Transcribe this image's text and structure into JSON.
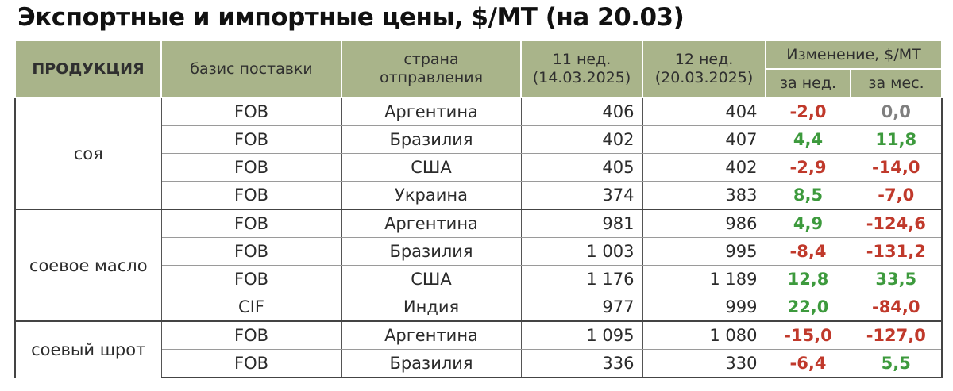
{
  "title": "Экспортные и импортные цены, $/МТ (на 20.03)",
  "header": {
    "product": "ПРОДУКЦИЯ",
    "basis": "базис поставки",
    "country_l1": "страна",
    "country_l2": "отправления",
    "w11_l1": "11 нед.",
    "w11_l2": "(14.03.2025)",
    "w12_l1": "12 нед.",
    "w12_l2": "(20.03.2025)",
    "change": "Изменение, $/МТ",
    "change_week": "за нед.",
    "change_month": "за мес."
  },
  "colors": {
    "header_bg": "#a9b48a",
    "negative": "#c0392b",
    "positive": "#3d9a3d",
    "zero": "#7f7f7f"
  },
  "rows": [
    {
      "product": "соя",
      "basis": "FOB",
      "country": "Аргентина",
      "w11": "406",
      "w12": "404",
      "dw": "-2,0",
      "dw_sign": "neg",
      "dm": "0,0",
      "dm_sign": "zero"
    },
    {
      "product": "",
      "basis": "FOB",
      "country": "Бразилия",
      "w11": "402",
      "w12": "407",
      "dw": "4,4",
      "dw_sign": "pos",
      "dm": "11,8",
      "dm_sign": "pos"
    },
    {
      "product": "",
      "basis": "FOB",
      "country": "США",
      "w11": "405",
      "w12": "402",
      "dw": "-2,9",
      "dw_sign": "neg",
      "dm": "-14,0",
      "dm_sign": "neg"
    },
    {
      "product": "",
      "basis": "FOB",
      "country": "Украина",
      "w11": "374",
      "w12": "383",
      "dw": "8,5",
      "dw_sign": "pos",
      "dm": "-7,0",
      "dm_sign": "neg"
    },
    {
      "product": "соевое масло",
      "basis": "FOB",
      "country": "Аргентина",
      "w11": "981",
      "w12": "986",
      "dw": "4,9",
      "dw_sign": "pos",
      "dm": "-124,6",
      "dm_sign": "neg"
    },
    {
      "product": "",
      "basis": "FOB",
      "country": "Бразилия",
      "w11": "1 003",
      "w12": "995",
      "dw": "-8,4",
      "dw_sign": "neg",
      "dm": "-131,2",
      "dm_sign": "neg"
    },
    {
      "product": "",
      "basis": "FOB",
      "country": "США",
      "w11": "1 176",
      "w12": "1 189",
      "dw": "12,8",
      "dw_sign": "pos",
      "dm": "33,5",
      "dm_sign": "pos"
    },
    {
      "product": "",
      "basis": "CIF",
      "country": "Индия",
      "w11": "977",
      "w12": "999",
      "dw": "22,0",
      "dw_sign": "pos",
      "dm": "-84,0",
      "dm_sign": "neg"
    },
    {
      "product": "соевый шрот",
      "basis": "FOB",
      "country": "Аргентина",
      "w11": "1 095",
      "w12": "1 080",
      "dw": "-15,0",
      "dw_sign": "neg",
      "dm": "-127,0",
      "dm_sign": "neg"
    },
    {
      "product": "",
      "basis": "FOB",
      "country": "Бразилия",
      "w11": "336",
      "w12": "330",
      "dw": "-6,4",
      "dw_sign": "neg",
      "dm": "5,5",
      "dm_sign": "pos"
    }
  ]
}
